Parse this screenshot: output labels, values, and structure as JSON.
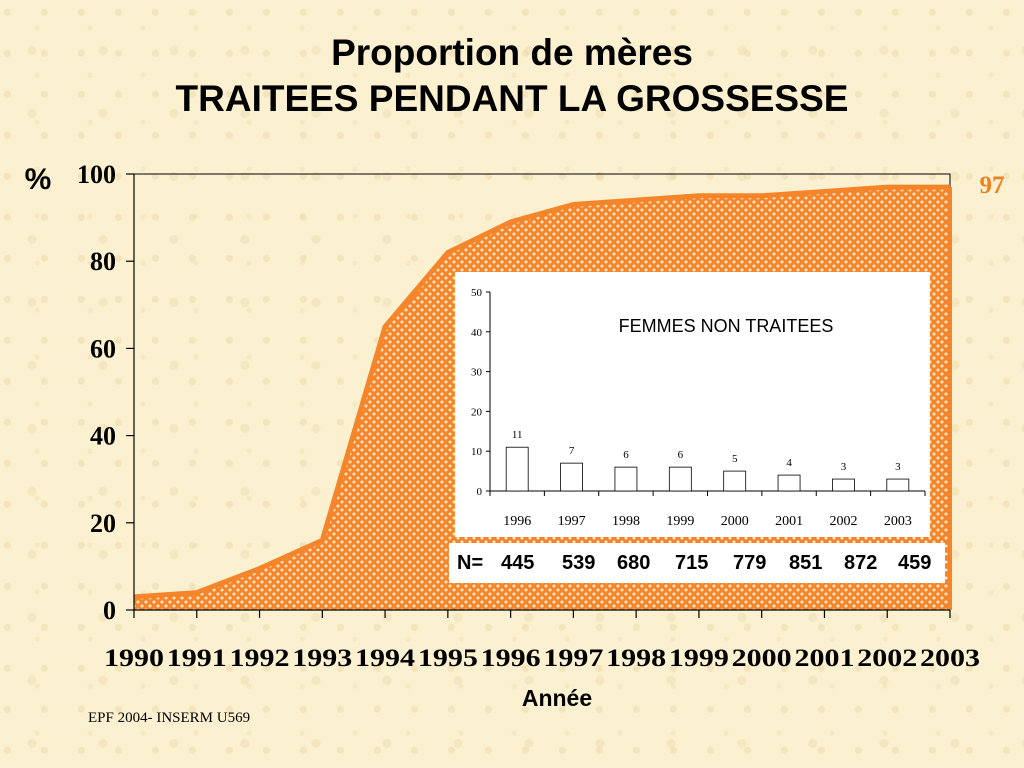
{
  "slide": {
    "title_line1": "Proportion de mères",
    "title_line2": "TRAITEES PENDANT LA GROSSESSE",
    "footer": "EPF 2004- INSERM U569"
  },
  "n_row": {
    "label": "N=",
    "values": [
      "445",
      "539",
      "680",
      "715",
      "779",
      "851",
      "872",
      "459"
    ]
  },
  "colors": {
    "area_fill": "#f5852a",
    "area_dot": "#ffffff",
    "end_label": "#f07f1e",
    "bar_fill": "#ffffff",
    "axis": "#000000"
  },
  "chart_data": [
    {
      "type": "area",
      "title": "Proportion de mères TRAITEES PENDANT LA GROSSESSE",
      "xlabel": "Année",
      "ylabel": "%",
      "x": [
        "1990",
        "1991",
        "1992",
        "1993",
        "1994",
        "1995",
        "1996",
        "1997",
        "1998",
        "1999",
        "2000",
        "2001",
        "2002",
        "2003"
      ],
      "series": [
        {
          "values": [
            3,
            4,
            9.5,
            16,
            65,
            82,
            89,
            93,
            94,
            95,
            95,
            96,
            97,
            97
          ]
        }
      ],
      "ylim": [
        0,
        100
      ],
      "yticks": [
        0,
        20,
        40,
        60,
        80,
        100
      ],
      "end_label": "97",
      "grid": false
    },
    {
      "type": "bar",
      "title": "FEMMES NON TRAITEES",
      "categories": [
        "1996",
        "1997",
        "1998",
        "1999",
        "2000",
        "2001",
        "2002",
        "2003"
      ],
      "values": [
        11,
        7,
        6,
        6,
        5,
        4,
        3,
        3
      ],
      "ylim": [
        0,
        50
      ],
      "yticks": [
        0,
        10,
        20,
        30,
        40,
        50
      ],
      "grid": false
    }
  ]
}
